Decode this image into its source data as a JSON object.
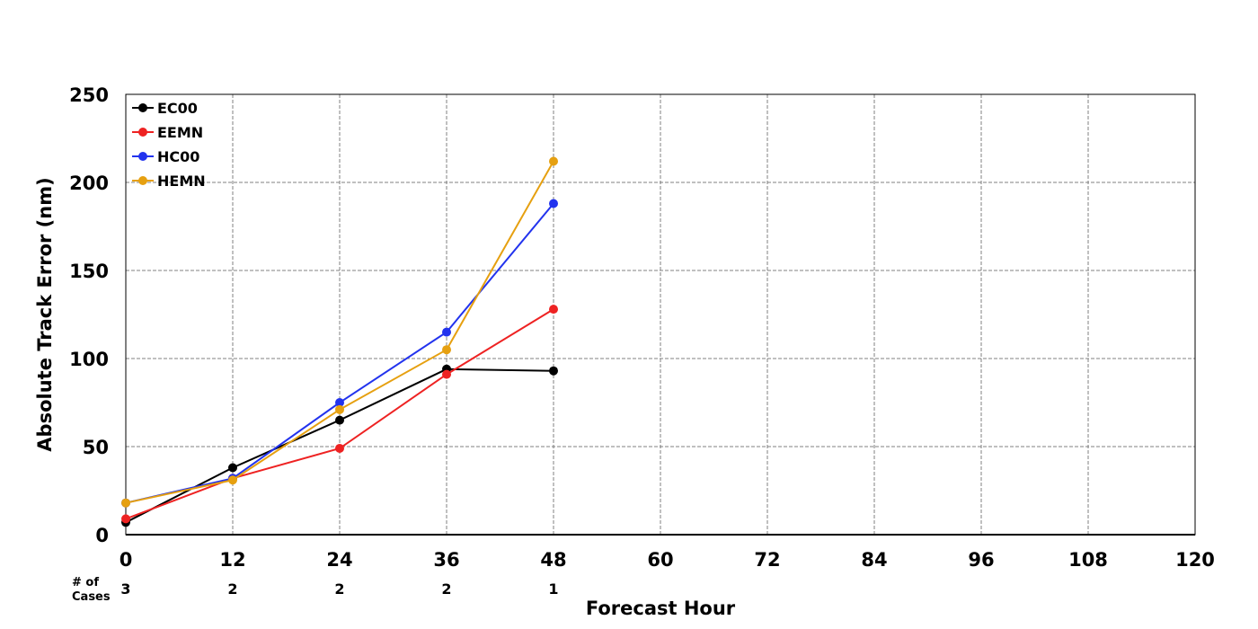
{
  "chart_data": {
    "type": "line",
    "xlabel": "Forecast Hour",
    "ylabel": "Absolute Track Error (nm)",
    "xlim": [
      0,
      120
    ],
    "ylim": [
      0,
      250
    ],
    "x_ticks": [
      0,
      12,
      24,
      36,
      48,
      60,
      72,
      84,
      96,
      108,
      120
    ],
    "y_ticks": [
      0,
      50,
      100,
      150,
      200,
      250
    ],
    "grid": true,
    "legend_position": "top-left",
    "series": [
      {
        "name": "EC00",
        "color": "#000000",
        "x": [
          0,
          12,
          24,
          36,
          48
        ],
        "y": [
          7,
          38,
          65,
          94,
          93
        ]
      },
      {
        "name": "EEMN",
        "color": "#ee2222",
        "x": [
          0,
          12,
          24,
          36,
          48
        ],
        "y": [
          9,
          32,
          49,
          91,
          128
        ]
      },
      {
        "name": "HC00",
        "color": "#2233ee",
        "x": [
          0,
          12,
          24,
          36,
          48
        ],
        "y": [
          18,
          32,
          75,
          115,
          188
        ]
      },
      {
        "name": "HEMN",
        "color": "#e6a010",
        "x": [
          0,
          12,
          24,
          36,
          48
        ],
        "y": [
          18,
          31,
          71,
          105,
          212
        ]
      }
    ],
    "cases": {
      "label_line1": "# of",
      "label_line2": "Cases",
      "x": [
        0,
        12,
        24,
        36,
        48
      ],
      "values": [
        "3",
        "2",
        "2",
        "2",
        "1"
      ]
    }
  }
}
